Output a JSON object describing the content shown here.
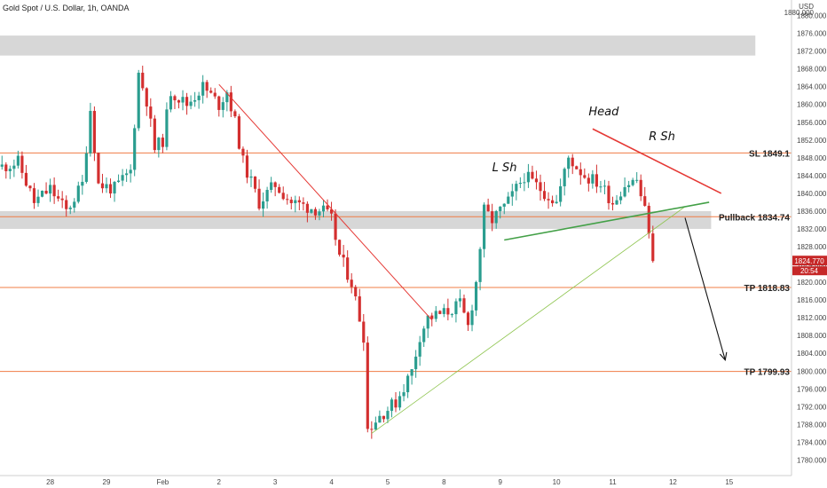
{
  "header": {
    "title": "Gold Spot / U.S. Dollar, 1h, OANDA",
    "currency": "USD",
    "top_price": "1880.000"
  },
  "colors": {
    "up": "#2a9d8f",
    "down": "#d32f2f",
    "level_line": "#f07c45",
    "zone": "#d5d5d5",
    "channel": "#e53935",
    "neckline": "#43a047",
    "support": "#8bc34a",
    "projection": "#111111",
    "price_badge": "#c62828"
  },
  "chart_data": {
    "type": "candlestick",
    "symbol": "Gold Spot / U.S. Dollar",
    "interval": "1h",
    "source": "OANDA",
    "y_unit": "USD",
    "ylim": [
      1776.5,
      1883.5
    ],
    "y_ticks": [
      "1880.000",
      "1876.000",
      "1872.000",
      "1868.000",
      "1864.000",
      "1860.000",
      "1856.000",
      "1852.000",
      "1848.000",
      "1844.000",
      "1840.000",
      "1836.000",
      "1832.000",
      "1828.000",
      "1824.000",
      "1820.000",
      "1816.000",
      "1812.000",
      "1808.000",
      "1804.000",
      "1800.000",
      "1796.000",
      "1792.000",
      "1788.000",
      "1784.000",
      "1780.000"
    ],
    "x_ticks": [
      {
        "label": "28",
        "slot": 12
      },
      {
        "label": "29",
        "slot": 26
      },
      {
        "label": "Feb",
        "slot": 40
      },
      {
        "label": "2",
        "slot": 54
      },
      {
        "label": "3",
        "slot": 68
      },
      {
        "label": "4",
        "slot": 82
      },
      {
        "label": "5",
        "slot": 96
      },
      {
        "label": "8",
        "slot": 110
      },
      {
        "label": "9",
        "slot": 124
      },
      {
        "label": "10",
        "slot": 138
      },
      {
        "label": "11",
        "slot": 152
      },
      {
        "label": "12",
        "slot": 167
      },
      {
        "label": "15",
        "slot": 181
      }
    ],
    "slot_count": 197,
    "last_slot": 162,
    "close_path": [
      [
        0,
        1846
      ],
      [
        4,
        1847
      ],
      [
        8,
        1838
      ],
      [
        12,
        1841
      ],
      [
        16,
        1836
      ],
      [
        20,
        1842
      ],
      [
        22,
        1859
      ],
      [
        24,
        1842
      ],
      [
        28,
        1841
      ],
      [
        32,
        1845
      ],
      [
        34,
        1867
      ],
      [
        36,
        1861
      ],
      [
        38,
        1850
      ],
      [
        40,
        1852
      ],
      [
        42,
        1863
      ],
      [
        46,
        1860
      ],
      [
        50,
        1864
      ],
      [
        54,
        1860
      ],
      [
        56,
        1863
      ],
      [
        58,
        1856
      ],
      [
        60,
        1847
      ],
      [
        64,
        1838
      ],
      [
        68,
        1842
      ],
      [
        72,
        1838
      ],
      [
        76,
        1837
      ],
      [
        80,
        1836
      ],
      [
        82,
        1834
      ],
      [
        84,
        1826
      ],
      [
        87,
        1820
      ],
      [
        90,
        1808
      ],
      [
        91,
        1787
      ],
      [
        94,
        1790
      ],
      [
        98,
        1793
      ],
      [
        102,
        1800
      ],
      [
        104,
        1808
      ],
      [
        106,
        1812
      ],
      [
        110,
        1813
      ],
      [
        114,
        1815
      ],
      [
        116,
        1810
      ],
      [
        118,
        1820
      ],
      [
        120,
        1836
      ],
      [
        122,
        1834
      ],
      [
        126,
        1838
      ],
      [
        130,
        1844
      ],
      [
        134,
        1841
      ],
      [
        138,
        1838
      ],
      [
        141,
        1848
      ],
      [
        145,
        1844
      ],
      [
        149,
        1842
      ],
      [
        152,
        1838
      ],
      [
        155,
        1842
      ],
      [
        158,
        1843
      ],
      [
        160,
        1836
      ],
      [
        161,
        1832
      ],
      [
        162,
        1824.77
      ]
    ],
    "price_scale_note": "open-high-low-close hourly candles",
    "current_price": "1824.770",
    "countdown": "20:54",
    "levels": [
      {
        "name": "SL",
        "label": "SL 1849.1",
        "value": 1849.1
      },
      {
        "name": "Pullback",
        "label": "Pullback 1834.74",
        "value": 1834.74
      },
      {
        "name": "TP1",
        "label": "TP 1818.83",
        "value": 1818.83
      },
      {
        "name": "TP2",
        "label": "TP 1799.93",
        "value": 1799.93
      }
    ],
    "zones": [
      {
        "name": "upper-resistance",
        "from": 1871,
        "to": 1875.5,
        "slot_start": 0,
        "slot_end": 188
      },
      {
        "name": "pullback-zone",
        "from": 1832,
        "to": 1836,
        "slot_start": 0,
        "slot_end": 177
      }
    ],
    "trendlines": [
      {
        "name": "descending-channel",
        "from": [
          54,
          1864.5
        ],
        "to": [
          107,
          1811.5
        ],
        "color": "channel",
        "width": 1
      },
      {
        "name": "head-shoulder-top",
        "from": [
          147,
          1854.5
        ],
        "to": [
          179,
          1840
        ],
        "color": "channel",
        "width": 1.6
      },
      {
        "name": "rising-support",
        "from": [
          92,
          1786
        ],
        "to": [
          170,
          1837
        ],
        "color": "support",
        "width": 0.8
      },
      {
        "name": "neckline",
        "from": [
          125,
          1829.5
        ],
        "to": [
          176,
          1838
        ],
        "color": "neckline",
        "width": 1.6
      },
      {
        "name": "projection",
        "from": [
          170,
          1834.5
        ],
        "to": [
          180,
          1802.5
        ],
        "color": "projection",
        "width": 1.1
      }
    ],
    "annotations": [
      {
        "text": "Head",
        "slot": 146,
        "value": 1857.5
      },
      {
        "text": "L Sh",
        "slot": 122,
        "value": 1845
      },
      {
        "text": "R Sh",
        "slot": 161,
        "value": 1852
      }
    ]
  }
}
